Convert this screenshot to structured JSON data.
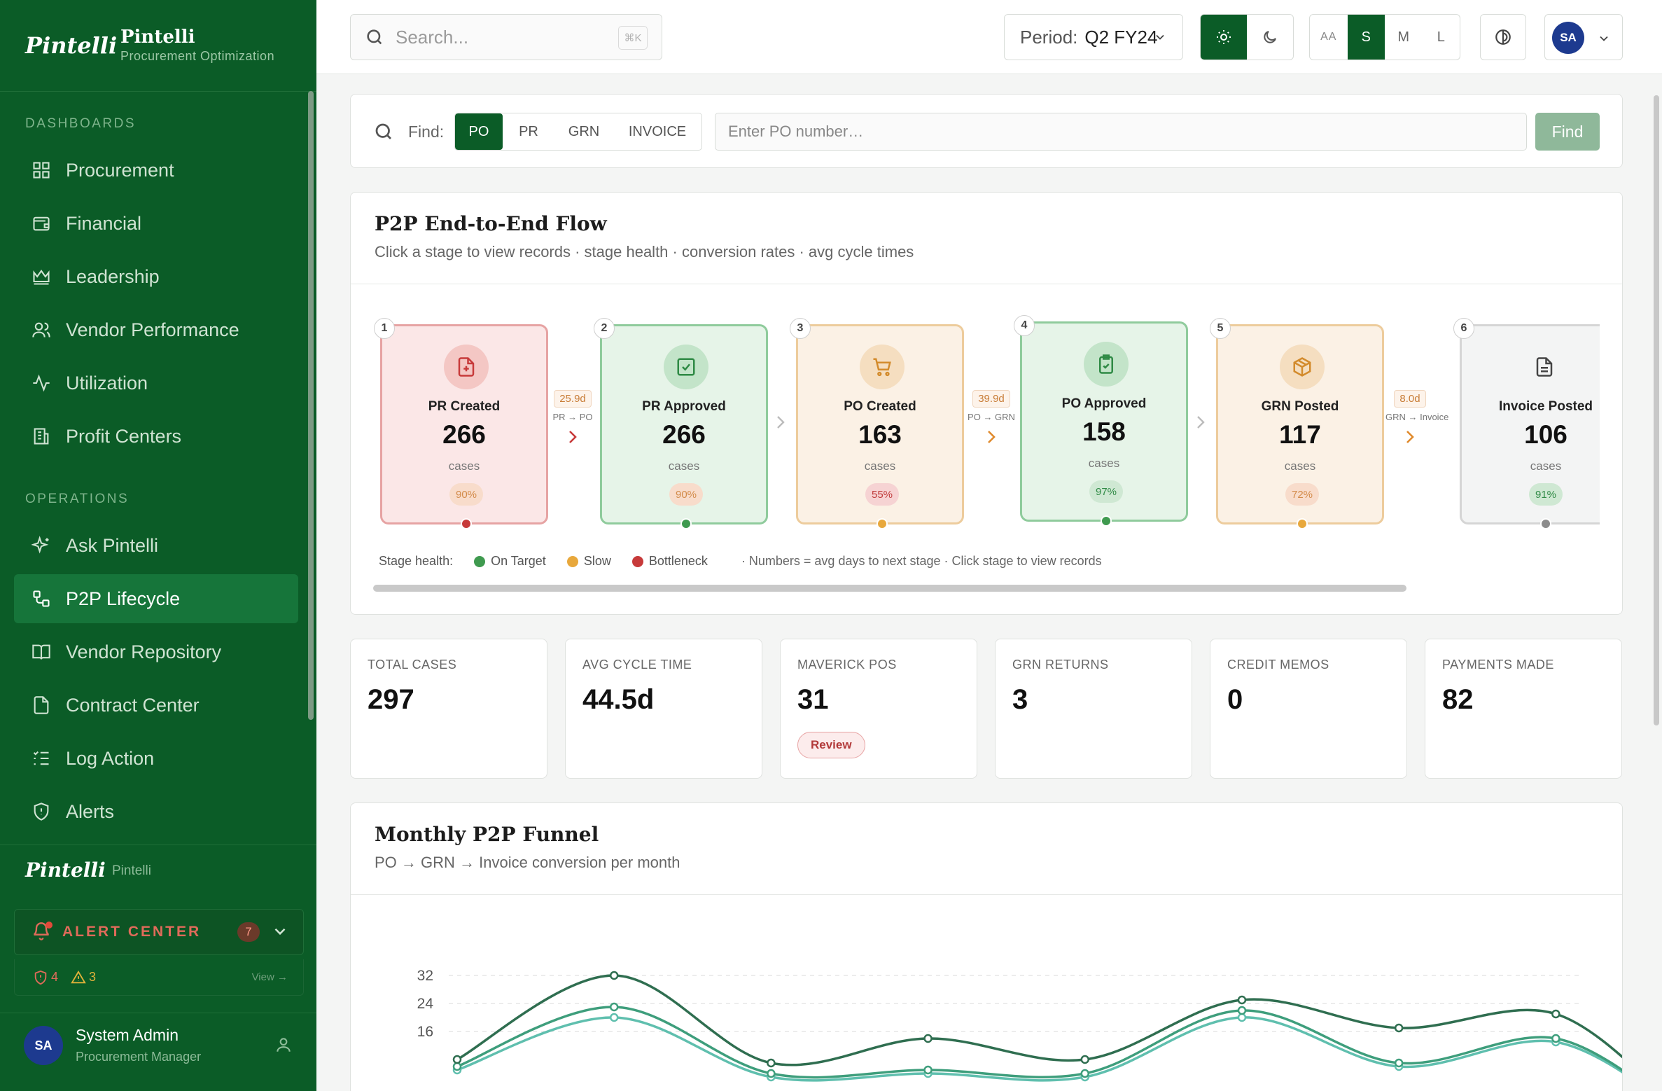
{
  "brand": {
    "logo": "Pintelli",
    "name": "Pintelli",
    "subtitle": "Procurement Optimization"
  },
  "sidebar": {
    "sections": [
      {
        "label": "DASHBOARDS"
      },
      {
        "label": "OPERATIONS"
      }
    ],
    "dashboards": [
      {
        "label": "Procurement",
        "icon": "grid-icon"
      },
      {
        "label": "Financial",
        "icon": "wallet-icon"
      },
      {
        "label": "Leadership",
        "icon": "crown-icon"
      },
      {
        "label": "Vendor Performance",
        "icon": "users-icon"
      },
      {
        "label": "Utilization",
        "icon": "activity-icon"
      },
      {
        "label": "Profit Centers",
        "icon": "building-icon"
      }
    ],
    "operations": [
      {
        "label": "Ask Pintelli",
        "icon": "sparkles-icon"
      },
      {
        "label": "P2P Lifecycle",
        "icon": "workflow-icon",
        "active": true
      },
      {
        "label": "Vendor Repository",
        "icon": "book-icon"
      },
      {
        "label": "Contract Center",
        "icon": "file-icon"
      },
      {
        "label": "Log Action",
        "icon": "list-check-icon"
      },
      {
        "label": "Alerts",
        "icon": "shield-icon"
      }
    ],
    "footer_brand": {
      "logo": "Pintelli",
      "name": "Pintelli"
    },
    "alert_center": {
      "label": "ALERT CENTER",
      "count": "7",
      "critical": "4",
      "warnings": "3",
      "view": "View →"
    },
    "user": {
      "initials": "SA",
      "name": "System Admin",
      "role": "Procurement Manager"
    }
  },
  "topbar": {
    "search_placeholder": "Search...",
    "search_shortcut": "⌘K",
    "period_label": "Period:",
    "period_value": "Q2 FY24",
    "text_sizes": [
      "AA",
      "S",
      "M",
      "L"
    ],
    "active_size": "S",
    "user_initials": "SA"
  },
  "find": {
    "label": "Find:",
    "types": [
      "PO",
      "PR",
      "GRN",
      "INVOICE"
    ],
    "active_type": "PO",
    "placeholder": "Enter PO number…",
    "button": "Find"
  },
  "flow": {
    "title": "P2P End-to-End Flow",
    "subtitle": "Click a stage to view records · stage health · conversion rates · avg cycle times",
    "stages": [
      {
        "num": "1",
        "name": "PR Created",
        "value": "266",
        "unit": "cases",
        "pct": "90%",
        "health": "bottleneck",
        "icon": "file-plus-icon"
      },
      {
        "num": "2",
        "name": "PR Approved",
        "value": "266",
        "unit": "cases",
        "pct": "90%",
        "health": "on-target",
        "icon": "check-square-icon"
      },
      {
        "num": "3",
        "name": "PO Created",
        "value": "163",
        "unit": "cases",
        "pct": "55%",
        "health": "slow",
        "icon": "cart-icon"
      },
      {
        "num": "4",
        "name": "PO Approved",
        "value": "158",
        "unit": "cases",
        "pct": "97%",
        "health": "on-target",
        "icon": "clipboard-check-icon"
      },
      {
        "num": "5",
        "name": "GRN Posted",
        "value": "117",
        "unit": "cases",
        "pct": "72%",
        "health": "slow",
        "icon": "package-icon"
      },
      {
        "num": "6",
        "name": "Invoice Posted",
        "value": "106",
        "unit": "cases",
        "pct": "91%",
        "health": "neutral",
        "icon": "document-icon"
      }
    ],
    "connectors": [
      {
        "days": "25.9d",
        "label": "PR → PO"
      },
      {
        "days": "39.9d",
        "label": "PO → GRN"
      },
      {
        "days": "8.0d",
        "label": "GRN → Invoice"
      }
    ],
    "legend": {
      "label": "Stage health:",
      "items": [
        "On Target",
        "Slow",
        "Bottleneck"
      ],
      "note": "· Numbers = avg days to next stage · Click stage to view records"
    }
  },
  "kpis": [
    {
      "label": "TOTAL CASES",
      "value": "297"
    },
    {
      "label": "AVG CYCLE TIME",
      "value": "44.5d"
    },
    {
      "label": "MAVERICK POS",
      "value": "31",
      "badge": "Review"
    },
    {
      "label": "GRN RETURNS",
      "value": "3"
    },
    {
      "label": "CREDIT MEMOS",
      "value": "0"
    },
    {
      "label": "PAYMENTS MADE",
      "value": "82"
    }
  ],
  "funnel": {
    "title": "Monthly P2P Funnel",
    "subtitle": "PO → GRN → Invoice conversion per month"
  },
  "chart_data": {
    "type": "line",
    "x": [
      1,
      2,
      3,
      4,
      5,
      6,
      7,
      8
    ],
    "yticks": [
      "32",
      "24",
      "16"
    ],
    "ylim": [
      8,
      33
    ],
    "series": [
      {
        "values": [
          8,
          32,
          7,
          14,
          8,
          25,
          17,
          21
        ],
        "color": "#2f6e50"
      },
      {
        "values": [
          6,
          23,
          4,
          5,
          4,
          22,
          7,
          14
        ],
        "color": "#3e9e7c"
      },
      {
        "values": [
          5,
          20,
          3,
          4,
          3,
          20,
          6,
          13
        ],
        "color": "#5fbfae"
      }
    ]
  },
  "colors": {
    "sidebar": "#0b5c27",
    "accent": "#0b5c27",
    "on_target": "#3f9a4f",
    "slow": "#e8a83c",
    "bottleneck": "#c73a3a",
    "neutral": "#8c8c8c"
  }
}
